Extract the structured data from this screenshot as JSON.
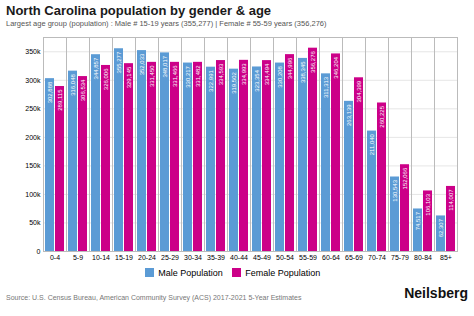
{
  "chart_data": {
    "type": "bar",
    "title": "North Carolina population by gender & age",
    "subtitle": "Largest age group (population) : Male # 15-19 years (355,277) | Female # 55-59 years (356,276)",
    "annotations": [
      "Source: U.S. Census Bureau, American Community Survey (ACS) 2017-2021 5-Year Estimates",
      "Neilsberg"
    ],
    "categories": [
      "0-4",
      "5-9",
      "10-14",
      "15-19",
      "20-24",
      "25-29",
      "30-34",
      "35-39",
      "40-44",
      "45-49",
      "50-54",
      "55-59",
      "60-64",
      "65-69",
      "70-74",
      "75-79",
      "80-84",
      "85+"
    ],
    "series": [
      {
        "name": "Male Population",
        "color": "#5b9bd5",
        "values": [
          302888,
          316048,
          344857,
          355277,
          352033,
          348017,
          330217,
          322991,
          319502,
          323354,
          330208,
          338345,
          311313,
          263139,
          211040,
          130543,
          74517,
          62307
        ],
        "value_labels": [
          "302,888",
          "316,048",
          "344,857",
          "355,277",
          "352,033",
          "348,017",
          "330,217",
          "322,991",
          "319,502",
          "323,354",
          "330,208",
          "338,345",
          "311,313",
          "263,139",
          "211,040",
          "130,543",
          "74,517",
          "62,307"
        ]
      },
      {
        "name": "Female Population",
        "color": "#cc0088",
        "values": [
          289115,
          306534,
          326006,
          329145,
          331450,
          331466,
          331482,
          334593,
          334993,
          334494,
          344996,
          356276,
          346204,
          304399,
          260225,
          152066,
          106103,
          114007
        ],
        "value_labels": [
          "289,115",
          "306,534",
          "326,006",
          "329,145",
          "331,450",
          "331,466",
          "331,482",
          "334,593",
          "334,993",
          "334,494",
          "344,996",
          "356,276",
          "346,204",
          "304,399",
          "260,225",
          "152,066",
          "106,103",
          "114,007"
        ]
      }
    ],
    "ylim": [
      0,
      375000
    ],
    "yticks": [
      0,
      {
        "value": 50000,
        "label": "50k"
      },
      {
        "value": 100000,
        "label": "100k"
      },
      {
        "value": 150000,
        "label": "150k"
      },
      {
        "value": 200000,
        "label": "200k"
      },
      {
        "value": 250000,
        "label": "250k"
      },
      {
        "value": 300000,
        "label": "300k"
      },
      {
        "value": 350000,
        "label": "350k"
      }
    ],
    "grid": true,
    "legend": "bottom",
    "data_labels": true
  }
}
